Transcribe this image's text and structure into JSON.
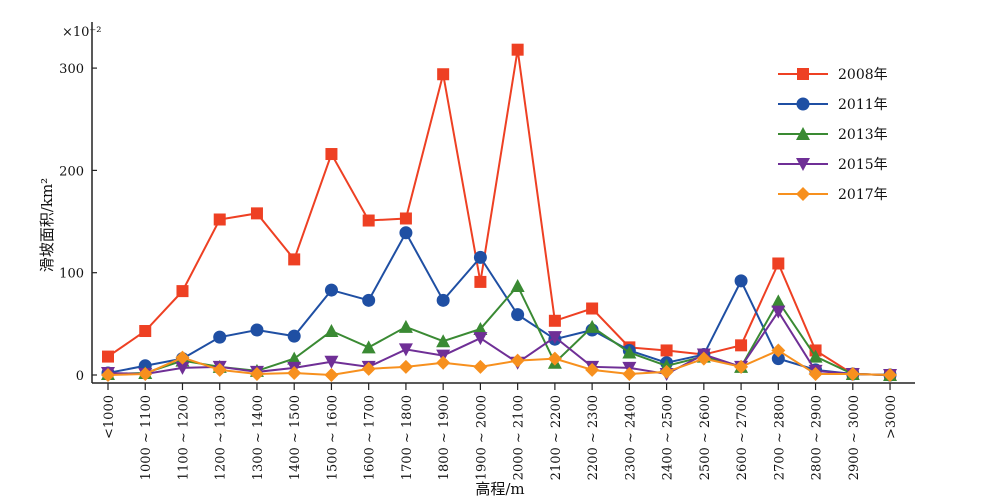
{
  "chart_data": {
    "type": "line",
    "ylabel": "滑坡面积/km²",
    "yscale_note": "×10⁻²",
    "xlabel": "高程/m",
    "ylim": [
      -10,
      335
    ],
    "yticks": [
      0,
      100,
      200,
      300
    ],
    "categories": [
      "<1000",
      "1000 ~ 1100",
      "1100 ~ 1200",
      "1200 ~ 1300",
      "1300 ~ 1400",
      "1400 ~ 1500",
      "1500 ~ 1600",
      "1600 ~ 1700",
      "1700 ~ 1800",
      "1800 ~ 1900",
      "1900 ~ 2000",
      "2000 ~ 2100",
      "2100 ~ 2200",
      "2200 ~ 2300",
      "2300 ~ 2400",
      "2400 ~ 2500",
      "2500 ~ 2600",
      "2600 ~ 2700",
      "2700 ~ 2800",
      "2800 ~ 2900",
      "2900 ~ 3000",
      ">3000"
    ],
    "legend_position": "top-right",
    "series": [
      {
        "name": "2008年",
        "color": "#ee4023",
        "marker": "square",
        "values": [
          18,
          43,
          82,
          152,
          158,
          113,
          216,
          151,
          153,
          294,
          91,
          318,
          53,
          65,
          27,
          24,
          20,
          29,
          109,
          24,
          1,
          0
        ]
      },
      {
        "name": "2011年",
        "color": "#1f4fa3",
        "marker": "circle",
        "values": [
          2,
          9,
          16,
          37,
          44,
          38,
          83,
          73,
          139,
          73,
          115,
          59,
          35,
          44,
          24,
          12,
          20,
          92,
          16,
          5,
          1,
          0
        ]
      },
      {
        "name": "2013年",
        "color": "#3a8a33",
        "marker": "triangle-up",
        "values": [
          1,
          2,
          14,
          8,
          4,
          16,
          43,
          27,
          47,
          33,
          45,
          87,
          12,
          47,
          22,
          9,
          18,
          8,
          72,
          18,
          1,
          0
        ]
      },
      {
        "name": "2015年",
        "color": "#6f2f96",
        "marker": "triangle-down",
        "values": [
          2,
          1,
          7,
          8,
          3,
          7,
          13,
          8,
          25,
          19,
          36,
          12,
          37,
          8,
          7,
          1,
          20,
          8,
          62,
          4,
          1,
          0
        ]
      },
      {
        "name": "2017年",
        "color": "#f7901e",
        "marker": "diamond",
        "values": [
          0,
          1,
          17,
          5,
          1,
          2,
          0,
          6,
          8,
          12,
          8,
          14,
          16,
          5,
          1,
          3,
          16,
          8,
          24,
          1,
          1,
          0
        ]
      }
    ]
  }
}
